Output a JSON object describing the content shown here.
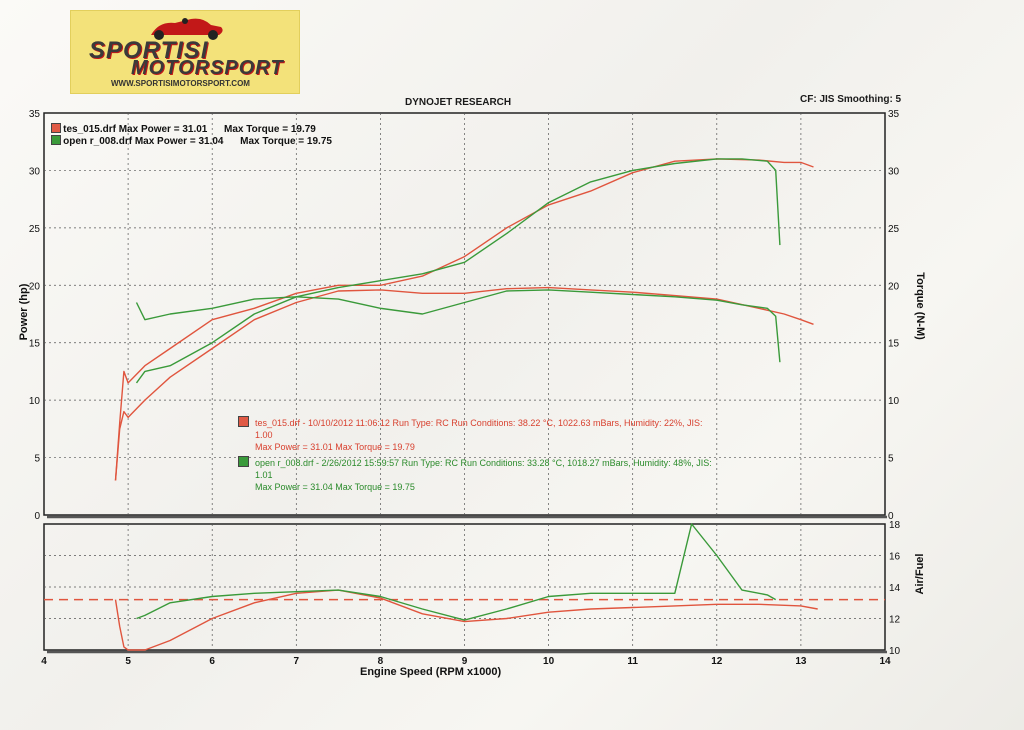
{
  "logo": {
    "line1": "SPORTISI",
    "line2": "MOTORSPORT",
    "url": "WWW.SPORTISIMOTORSPORT.COM"
  },
  "header": {
    "title": "DYNOJET RESEARCH",
    "cf": "CF: JIS  Smoothing: 5"
  },
  "legend": [
    {
      "text": "tes_015.drf Max Power = 31.01      Max Torque = 19.79",
      "color": "#d8412f"
    },
    {
      "text": "open r_008.drf Max Power = 31.04      Max Torque = 19.75",
      "color": "#2a8a2a"
    }
  ],
  "annotations": [
    {
      "line1": "tes_015.drf - 10/10/2012 11:06:12  Run Type: RC  Run Conditions: 38.22 °C, 1022.63 mBars,  Humidity:  22%, JIS:",
      "line2": "1.00",
      "line3": "Max Power = 31.01  Max Torque = 19.79",
      "color": "#d8412f"
    },
    {
      "line1": "open r_008.drf - 2/26/2012 15:59:57  Run Type: RC  Run Conditions: 33.28 °C, 1018.27 mBars,  Humidity:  48%, JIS:",
      "line2": "1.01",
      "line3": "Max Power = 31.04  Max Torque = 19.75",
      "color": "#2a8a2a"
    }
  ],
  "axes": {
    "xlabel": "Engine Speed (RPM x1000)",
    "ylabel_left": "Power (hp)",
    "ylabel_right": "Torque (N-M)",
    "ylabel_af": "Air/Fuel"
  },
  "chart_data": [
    {
      "type": "line",
      "title": "DYNOJET RESEARCH",
      "xlabel": "Engine Speed (RPM x1000)",
      "ylabel": "Power (hp)",
      "y2label": "Torque (N-M)",
      "xlim": [
        4,
        14
      ],
      "ylim": [
        0,
        35
      ],
      "y2lim": [
        0,
        35
      ],
      "xticks": [
        4,
        5,
        6,
        7,
        8,
        9,
        10,
        11,
        12,
        13,
        14
      ],
      "yticks": [
        0,
        5,
        10,
        15,
        20,
        25,
        30,
        35
      ],
      "grid": true,
      "legend": "top-left",
      "series": [
        {
          "name": "tes_015.drf",
          "quantity": "power",
          "color": "#e0553e",
          "x": [
            4.85,
            4.9,
            4.95,
            5.0,
            5.2,
            5.5,
            6.0,
            6.5,
            7.0,
            7.5,
            8.0,
            8.5,
            9.0,
            9.5,
            10.0,
            10.5,
            11.0,
            11.5,
            12.0,
            12.5,
            12.8,
            13.0,
            13.15
          ],
          "y": [
            3.0,
            8.0,
            12.5,
            11.5,
            13.0,
            14.5,
            17.0,
            18.0,
            19.3,
            20.0,
            20.0,
            20.8,
            22.5,
            25.0,
            27.0,
            28.2,
            29.8,
            30.8,
            31.0,
            30.9,
            30.7,
            30.7,
            30.3
          ]
        },
        {
          "name": "tes_015.drf",
          "quantity": "torque",
          "color": "#e0553e",
          "x": [
            4.85,
            4.9,
            4.95,
            5.0,
            5.2,
            5.5,
            6.0,
            6.5,
            7.0,
            7.5,
            8.0,
            8.5,
            9.0,
            9.5,
            10.0,
            10.5,
            11.0,
            11.5,
            12.0,
            12.5,
            12.8,
            13.0,
            13.15
          ],
          "y": [
            3.0,
            7.5,
            9.0,
            8.5,
            10.0,
            12.0,
            14.5,
            17.0,
            18.5,
            19.5,
            19.6,
            19.3,
            19.3,
            19.7,
            19.8,
            19.6,
            19.4,
            19.1,
            18.8,
            18.0,
            17.5,
            17.0,
            16.6
          ]
        },
        {
          "name": "open r_008.drf",
          "quantity": "power",
          "color": "#3a9a3a",
          "x": [
            5.1,
            5.2,
            5.5,
            6.0,
            6.5,
            7.0,
            7.5,
            8.0,
            8.5,
            9.0,
            9.5,
            10.0,
            10.5,
            11.0,
            11.5,
            12.0,
            12.3,
            12.6,
            12.7,
            12.75
          ],
          "y": [
            11.5,
            12.5,
            13.0,
            15.0,
            17.5,
            19.0,
            19.8,
            20.4,
            21.0,
            22.0,
            24.5,
            27.2,
            29.0,
            30.0,
            30.6,
            31.0,
            31.0,
            30.8,
            30.0,
            23.5
          ]
        },
        {
          "name": "open r_008.drf",
          "quantity": "torque",
          "color": "#3a9a3a",
          "x": [
            5.1,
            5.2,
            5.5,
            6.0,
            6.5,
            7.0,
            7.5,
            8.0,
            8.5,
            9.0,
            9.5,
            10.0,
            10.5,
            11.0,
            11.5,
            12.0,
            12.3,
            12.6,
            12.7,
            12.75
          ],
          "y": [
            18.5,
            17.0,
            17.5,
            18.0,
            18.8,
            19.0,
            18.8,
            18.0,
            17.5,
            18.5,
            19.5,
            19.6,
            19.4,
            19.2,
            19.0,
            18.7,
            18.3,
            18.0,
            17.3,
            13.3
          ]
        }
      ]
    },
    {
      "type": "line",
      "xlabel": "Engine Speed (RPM x1000)",
      "ylabel": "Air/Fuel",
      "xlim": [
        4,
        14
      ],
      "ylim": [
        10,
        18
      ],
      "xticks": [
        4,
        5,
        6,
        7,
        8,
        9,
        10,
        11,
        12,
        13,
        14
      ],
      "yticks": [
        10,
        12,
        14,
        16,
        18
      ],
      "grid": true,
      "reference_line": {
        "y": 13.2,
        "color": "#e0553e",
        "style": "dashed"
      },
      "series": [
        {
          "name": "tes_015.drf",
          "color": "#e0553e",
          "x": [
            4.85,
            4.9,
            4.95,
            5.0,
            5.2,
            5.5,
            6.0,
            6.5,
            7.0,
            7.5,
            8.0,
            8.5,
            9.0,
            9.5,
            10.0,
            10.5,
            11.0,
            11.5,
            12.0,
            12.5,
            13.0,
            13.2
          ],
          "y": [
            13.2,
            11.5,
            10.2,
            10.0,
            10.0,
            10.6,
            12.0,
            13.0,
            13.6,
            13.8,
            13.3,
            12.3,
            11.8,
            12.0,
            12.4,
            12.6,
            12.7,
            12.8,
            12.9,
            12.9,
            12.8,
            12.6
          ]
        },
        {
          "name": "open r_008.drf",
          "color": "#3a9a3a",
          "x": [
            5.1,
            5.2,
            5.5,
            6.0,
            6.5,
            7.0,
            7.5,
            8.0,
            8.5,
            9.0,
            9.5,
            10.0,
            10.5,
            11.0,
            11.5,
            11.7,
            12.0,
            12.3,
            12.6,
            12.7
          ],
          "y": [
            12.0,
            12.2,
            13.0,
            13.4,
            13.6,
            13.7,
            13.8,
            13.4,
            12.6,
            11.9,
            12.6,
            13.4,
            13.6,
            13.6,
            13.6,
            18.0,
            16.0,
            13.8,
            13.5,
            13.2
          ]
        }
      ]
    }
  ]
}
